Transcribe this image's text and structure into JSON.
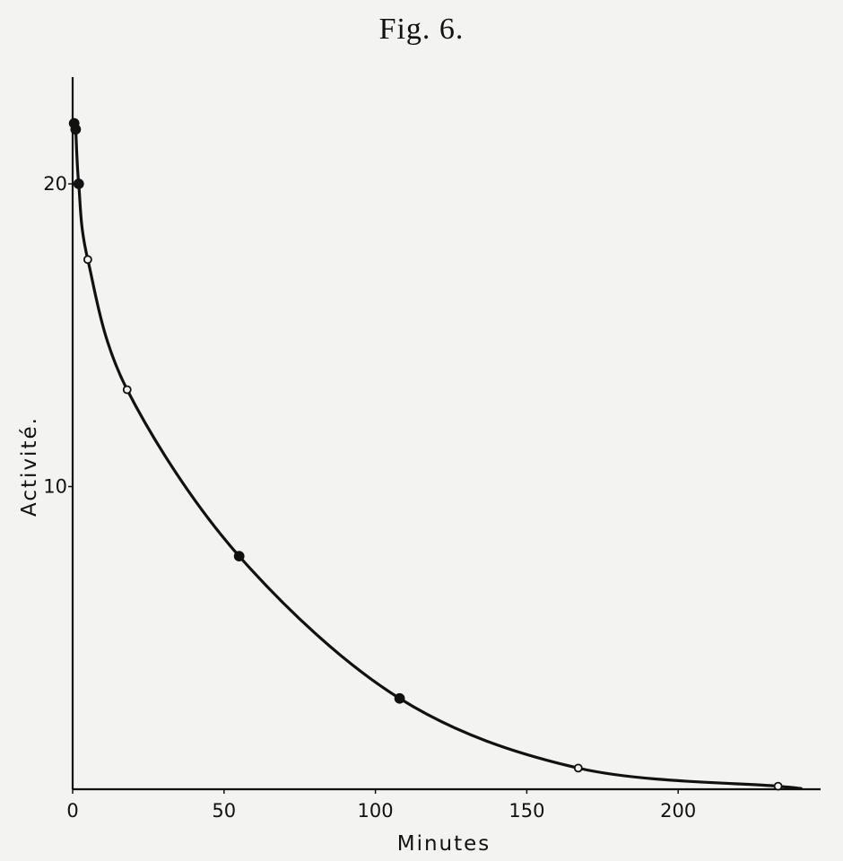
{
  "figure": {
    "title": "Fig. 6."
  },
  "chart_data": {
    "type": "line",
    "title": "Fig. 6.",
    "xlabel": "Minutes",
    "ylabel": "Activité.",
    "xlim": [
      0,
      250
    ],
    "ylim": [
      0,
      24
    ],
    "x_ticks": [
      {
        "value": 0,
        "label": "0"
      },
      {
        "value": 50,
        "label": "50"
      },
      {
        "value": 100,
        "label": "100"
      },
      {
        "value": 150,
        "label": "150"
      },
      {
        "value": 200,
        "label": "200"
      }
    ],
    "y_ticks": [
      {
        "value": 10,
        "label": "10"
      },
      {
        "value": 20,
        "label": "20"
      }
    ],
    "grid": false,
    "series": [
      {
        "x": [
          0.5,
          1,
          2,
          5,
          18,
          55,
          108,
          167,
          233
        ],
        "y": [
          22.0,
          21.8,
          20.0,
          17.5,
          13.2,
          7.7,
          3.0,
          0.7,
          0.1
        ],
        "marker_fill": [
          "filled",
          "filled",
          "filled",
          "open",
          "open",
          "filled",
          "filled",
          "open",
          "open"
        ]
      }
    ],
    "colors": {
      "line": "#111111",
      "background": "#f3f3f1"
    }
  }
}
